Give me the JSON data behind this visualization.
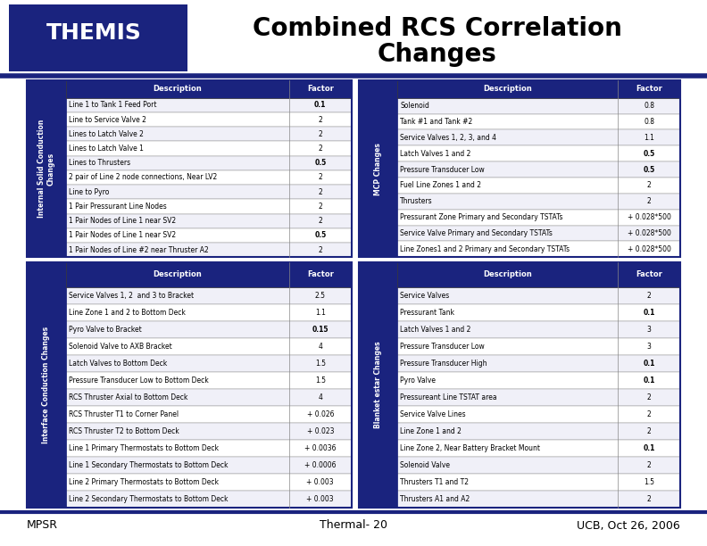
{
  "title_line1": "Combined RCS Correlation",
  "title_line2": "Changes",
  "footer_left": "MPSR",
  "footer_center": "Thermal- 20",
  "footer_right": "UCB, Oct 26, 2006",
  "header_bg": "#1a237e",
  "row_bg_light": "#ffffff",
  "row_bg_dark": "#e8e8e8",
  "label_bg": "#1a237e",
  "label_color": "#ffffff",
  "table1_label": "Internal Solid Conduction\nChanges",
  "table1_header": [
    "Description",
    "Factor"
  ],
  "table1_rows": [
    [
      "Line 1 to Tank 1 Feed Port",
      "0.1"
    ],
    [
      "Line to Service Valve 2",
      "2"
    ],
    [
      "Lines to Latch Valve 2",
      "2"
    ],
    [
      "Lines to Latch Valve 1",
      "2"
    ],
    [
      "Lines to Thrusters",
      "0.5"
    ],
    [
      "2 pair of Line 2 node connections, Near LV2",
      "2"
    ],
    [
      "Line to Pyro",
      "2"
    ],
    [
      "1 Pair Pressurant Line Nodes",
      "2"
    ],
    [
      "1 Pair Nodes of Line 1 near SV2",
      "2"
    ],
    [
      "1 Pair Nodes of Line 1 near SV2",
      "0.5"
    ],
    [
      "1 Pair Nodes of Line #2 near Thruster A2",
      "2"
    ]
  ],
  "table2_label": "MCP Changes",
  "table2_header": [
    "Description",
    "Factor"
  ],
  "table2_rows": [
    [
      "Solenoid",
      "0.8"
    ],
    [
      "Tank #1 and Tank #2",
      "0.8"
    ],
    [
      "Service Valves 1, 2, 3, and 4",
      "1.1"
    ],
    [
      "Latch Valves 1 and 2",
      "0.5"
    ],
    [
      "Pressure Transducer Low",
      "0.5"
    ],
    [
      "Fuel Line Zones 1 and 2",
      "2"
    ],
    [
      "Thrusters",
      "2"
    ],
    [
      "Pressurant Zone Primary and Secondary TSTATs",
      "+ 0.028*500"
    ],
    [
      "Service Valve Primary and Secondary TSTATs",
      "+ 0.028*500"
    ],
    [
      "Line Zones1 and 2 Primary and Secondary TSTATs",
      "+ 0.028*500"
    ]
  ],
  "table3_label": "Interface Conduction Changes",
  "table3_header": [
    "Description",
    "Factor"
  ],
  "table3_rows": [
    [
      "Service Valves 1, 2  and 3 to Bracket",
      "2.5"
    ],
    [
      "Line Zone 1 and 2 to Bottom Deck",
      "1.1"
    ],
    [
      "Pyro Valve to Bracket",
      "0.15"
    ],
    [
      "Solenoid Valve to AXB Bracket",
      "4"
    ],
    [
      "Latch Valves to Bottom Deck",
      "1.5"
    ],
    [
      "Pressure Transducer Low to Bottom Deck",
      "1.5"
    ],
    [
      "RCS Thruster Axial to Bottom Deck",
      "4"
    ],
    [
      "RCS Thruster T1 to Corner Panel",
      "+ 0.026"
    ],
    [
      "RCS Thruster T2 to Bottom Deck",
      "+ 0.023"
    ],
    [
      "Line 1 Primary Thermostats to Bottom Deck",
      "+ 0.0036"
    ],
    [
      "Line 1 Secondary Thermostats to Bottom Deck",
      "+ 0.0006"
    ],
    [
      "Line 2 Primary Thermostats to Bottom Deck",
      "+ 0.003"
    ],
    [
      "Line 2 Secondary Thermostats to Bottom Deck",
      "+ 0.003"
    ]
  ],
  "table4_label": "Blanket estar Changes",
  "table4_header": [
    "Description",
    "Factor"
  ],
  "table4_rows": [
    [
      "Service Valves",
      "2"
    ],
    [
      "Pressurant Tank",
      "0.1"
    ],
    [
      "Latch Valves 1 and 2",
      "3"
    ],
    [
      "Pressure Transducer Low",
      "3"
    ],
    [
      "Pressure Transducer High",
      "0.1"
    ],
    [
      "Pyro Valve",
      "0.1"
    ],
    [
      "Pressureant Line TSTAT area",
      "2"
    ],
    [
      "Service Valve Lines",
      "2"
    ],
    [
      "Line Zone 1 and 2",
      "2"
    ],
    [
      "Line Zone 2, Near Battery Bracket Mount",
      "0.1"
    ],
    [
      "Solenoid Valve",
      "2"
    ],
    [
      "Thrusters T1 and T2",
      "1.5"
    ],
    [
      "Thrusters A1 and A2",
      "2"
    ]
  ]
}
